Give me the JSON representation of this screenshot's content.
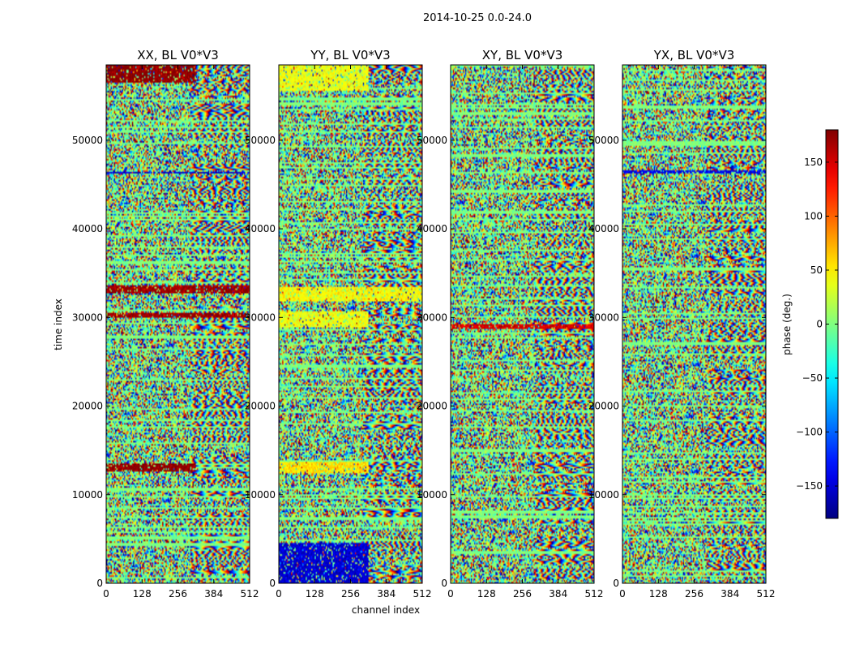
{
  "figure": {
    "suptitle": "2014-10-25 0.0-24.0",
    "xlabel": "channel index",
    "ylabel": "time index",
    "colorbar_label": "phase (deg.)"
  },
  "chart_data": [
    {
      "type": "heatmap",
      "title": "XX, BL V0*V3",
      "x_range": [
        0,
        512
      ],
      "y_range": [
        0,
        58500
      ],
      "x_ticks": [
        0,
        128,
        256,
        384,
        512
      ],
      "y_ticks": [
        0,
        10000,
        20000,
        30000,
        40000,
        50000
      ],
      "features": [
        {
          "band": [
            56500,
            58500
          ],
          "channels": [
            0,
            320
          ],
          "value": 175,
          "note": "red block"
        },
        {
          "band": [
            12600,
            13600
          ],
          "channels": [
            0,
            320
          ],
          "value": 175,
          "note": "red block"
        },
        {
          "band": [
            32800,
            33600
          ],
          "channels": [
            0,
            512
          ],
          "value": 170,
          "note": "red band"
        },
        {
          "band": [
            29900,
            30600
          ],
          "channels": [
            0,
            512
          ],
          "value": 170,
          "note": "red band"
        },
        {
          "band": [
            46200,
            46500
          ],
          "channels": [
            0,
            512
          ],
          "value": -150,
          "note": "blue line"
        }
      ]
    },
    {
      "type": "heatmap",
      "title": "YY, BL V0*V3",
      "x_range": [
        0,
        512
      ],
      "y_range": [
        0,
        58500
      ],
      "x_ticks": [
        0,
        128,
        256,
        384,
        512
      ],
      "y_ticks": [
        0,
        10000,
        20000,
        30000,
        40000,
        50000
      ],
      "features": [
        {
          "band": [
            55500,
            58500
          ],
          "channels": [
            0,
            320
          ],
          "value": 40,
          "note": "yellow-green block"
        },
        {
          "band": [
            12500,
            13800
          ],
          "channels": [
            0,
            320
          ],
          "value": 55,
          "note": "yellow block"
        },
        {
          "band": [
            28800,
            30800
          ],
          "channels": [
            0,
            320
          ],
          "value": 40,
          "note": "yellow band"
        },
        {
          "band": [
            31800,
            33400
          ],
          "channels": [
            0,
            512
          ],
          "value": 45,
          "note": "yellow band"
        },
        {
          "band": [
            0,
            4500
          ],
          "channels": [
            0,
            320
          ],
          "value": -150,
          "note": "blue region"
        }
      ]
    },
    {
      "type": "heatmap",
      "title": "XY, BL V0*V3",
      "x_range": [
        0,
        512
      ],
      "y_range": [
        0,
        58500
      ],
      "x_ticks": [
        0,
        128,
        256,
        384,
        512
      ],
      "y_ticks": [
        0,
        10000,
        20000,
        30000,
        40000,
        50000
      ],
      "features": [
        {
          "band": [
            28700,
            29200
          ],
          "channels": [
            0,
            512
          ],
          "value": 150,
          "note": "red line"
        }
      ]
    },
    {
      "type": "heatmap",
      "title": "YX, BL V0*V3",
      "x_range": [
        0,
        512
      ],
      "y_range": [
        0,
        58500
      ],
      "x_ticks": [
        0,
        128,
        256,
        384,
        512
      ],
      "y_ticks": [
        0,
        10000,
        20000,
        30000,
        40000,
        50000
      ],
      "features": [
        {
          "band": [
            46300,
            46700
          ],
          "channels": [
            0,
            512
          ],
          "value": -140,
          "note": "dark line"
        }
      ]
    }
  ],
  "colorbar": {
    "range": [
      -180,
      180
    ],
    "ticks": [
      -150,
      -100,
      -50,
      0,
      50,
      100,
      150
    ],
    "tick_labels": [
      "−150",
      "−100",
      "−50",
      "0",
      "50",
      "100",
      "150"
    ],
    "colormap": "jet"
  }
}
